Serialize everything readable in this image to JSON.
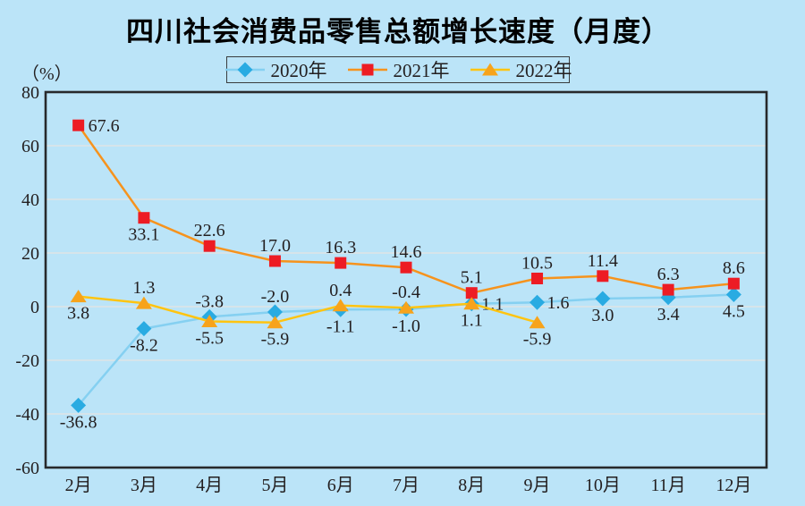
{
  "page": {
    "background_color": "#bbe4f8",
    "text_color": "#231f20"
  },
  "chart_data": {
    "type": "line",
    "title": "四川社会消费品零售总额增长速度（月度）",
    "unit_label": "（%）",
    "categories": [
      "2月",
      "3月",
      "4月",
      "5月",
      "6月",
      "7月",
      "8月",
      "9月",
      "10月",
      "11月",
      "12月"
    ],
    "ylim": [
      -60,
      80
    ],
    "ytick_step": 20,
    "grid": true,
    "gridline_color": "#e0e4e6",
    "border_color": "#27292b",
    "legend_position": "top-center",
    "series": [
      {
        "name": "2020年",
        "marker": "diamond",
        "marker_color": "#29abe2",
        "line_color": "#85d0f1",
        "values": [
          -36.8,
          -8.2,
          -3.8,
          -2.0,
          -1.1,
          -1.0,
          1.1,
          1.6,
          3.0,
          3.4,
          4.5
        ],
        "label_pos": [
          "below",
          "below",
          "above",
          "above",
          "below",
          "below",
          "right",
          "right",
          "below",
          "below",
          "below"
        ]
      },
      {
        "name": "2021年",
        "marker": "square",
        "marker_color": "#ed1c24",
        "line_color": "#f6931d",
        "values": [
          67.6,
          33.1,
          22.6,
          17.0,
          16.3,
          14.6,
          5.1,
          10.5,
          11.4,
          6.3,
          8.6
        ],
        "label_pos": [
          "right",
          "below",
          "above",
          "above",
          "above",
          "above",
          "above",
          "above",
          "above",
          "above",
          "above"
        ]
      },
      {
        "name": "2022年",
        "marker": "triangle",
        "marker_color": "#f7a31b",
        "line_color": "#ffc411",
        "values": [
          3.8,
          1.3,
          -5.5,
          -5.9,
          0.4,
          -0.4,
          1.1,
          -5.9
        ],
        "label_pos": [
          "below",
          "above",
          "below",
          "below",
          "above",
          "above",
          "below",
          "below"
        ]
      }
    ]
  }
}
